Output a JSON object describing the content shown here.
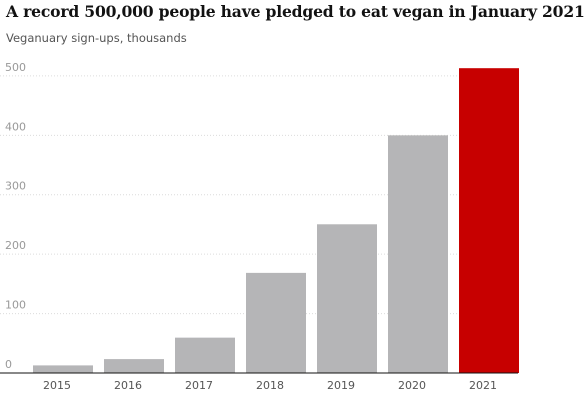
{
  "chart_data": {
    "type": "bar",
    "title": "A record 500,000 people have pledged to eat vegan in January 2021",
    "subtitle": "Veganuary sign-ups, thousands",
    "categories": [
      "2015",
      "2016",
      "2017",
      "2018",
      "2019",
      "2020",
      "2021"
    ],
    "values": [
      12.8,
      23.4,
      59.5,
      168.5,
      250.3,
      400,
      513
    ],
    "yticks": [
      0,
      100,
      200,
      300,
      400,
      500
    ],
    "ylim": [
      0,
      515
    ],
    "grid": true,
    "colors": {
      "default": "#b5b5b7",
      "highlight": "#c70000",
      "highlight_category": "2021"
    }
  }
}
